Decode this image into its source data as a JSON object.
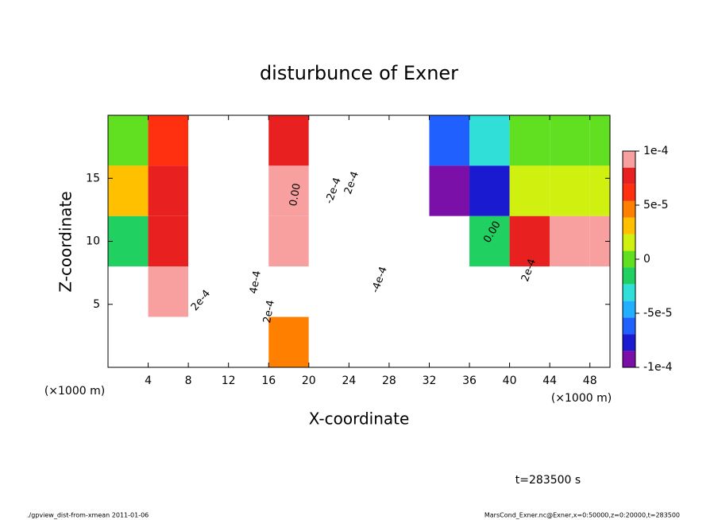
{
  "chart_data": {
    "type": "contour",
    "title": "disturbunce of Exner",
    "x_label": "X-coordinate",
    "y_label": "Z-coordinate",
    "x_unit": "(×1000 m)",
    "xlim": [
      0,
      50
    ],
    "ylim": [
      0,
      20
    ],
    "xticks": [
      4,
      8,
      12,
      16,
      20,
      24,
      28,
      32,
      36,
      40,
      44,
      48
    ],
    "yticks": [
      5,
      10,
      15
    ],
    "x": [
      2,
      6,
      10,
      14,
      18,
      22,
      26,
      30,
      34,
      38,
      42,
      46,
      50
    ],
    "z": [
      18,
      14,
      10,
      6,
      2
    ],
    "cell_size": [
      4,
      4
    ],
    "values": [
      [
        0,
        6e-05,
        0.0002,
        0.0002,
        8e-05,
        -0.0002,
        -0.0002,
        -0.00012,
        -6e-05,
        -3e-05,
        0,
        0,
        0
      ],
      [
        3e-05,
        8e-05,
        0.0003,
        0.0003,
        9e-05,
        -0.0002,
        -0.0003,
        -0.0002,
        -9e-05,
        -7e-05,
        1e-05,
        2e-05,
        2e-05
      ],
      [
        -2e-05,
        7e-05,
        0.0004,
        0.0004,
        9e-05,
        -0.0002,
        -0.0004,
        -0.0003,
        -0.0002,
        -1e-05,
        7e-05,
        9e-05,
        9e-05
      ],
      [
        0.0002,
        9e-05,
        0.0002,
        0.0004,
        0.00015,
        -0.0003,
        -0.0005,
        -0.0004,
        -0.0002,
        0.0002,
        0.0002,
        0.0002,
        0.0002
      ],
      [
        0.0002,
        0.0002,
        0.0003,
        0.0004,
        5e-05,
        -0.0003,
        -0.0006,
        -0.0008,
        -0.0002,
        0.0003,
        0.0002,
        0.0002,
        -0.0002
      ]
    ],
    "colorbar": {
      "lim": [
        -0.0001,
        0.0001
      ],
      "ticks": [
        {
          "value": 0.0001,
          "label": "1e-4"
        },
        {
          "value": 5e-05,
          "label": "5e-5"
        },
        0,
        {
          "value": -5e-05,
          "label": "-5e-5"
        },
        {
          "value": -0.0001,
          "label": "-1e-4"
        }
      ]
    },
    "contour_labels": [
      "0.00",
      "0.00",
      "-2e-4",
      "-4e-4",
      "4e-4",
      "2e-4",
      "2e-4",
      "2e-4",
      "2e-4"
    ],
    "time_label": "t=283500 s",
    "footer_left": "./gpview_dist-from-xmean  2011-01-06",
    "footer_right": "MarsCond_Exner.nc@Exner,x=0:50000,z=0:20000,t=283500"
  }
}
